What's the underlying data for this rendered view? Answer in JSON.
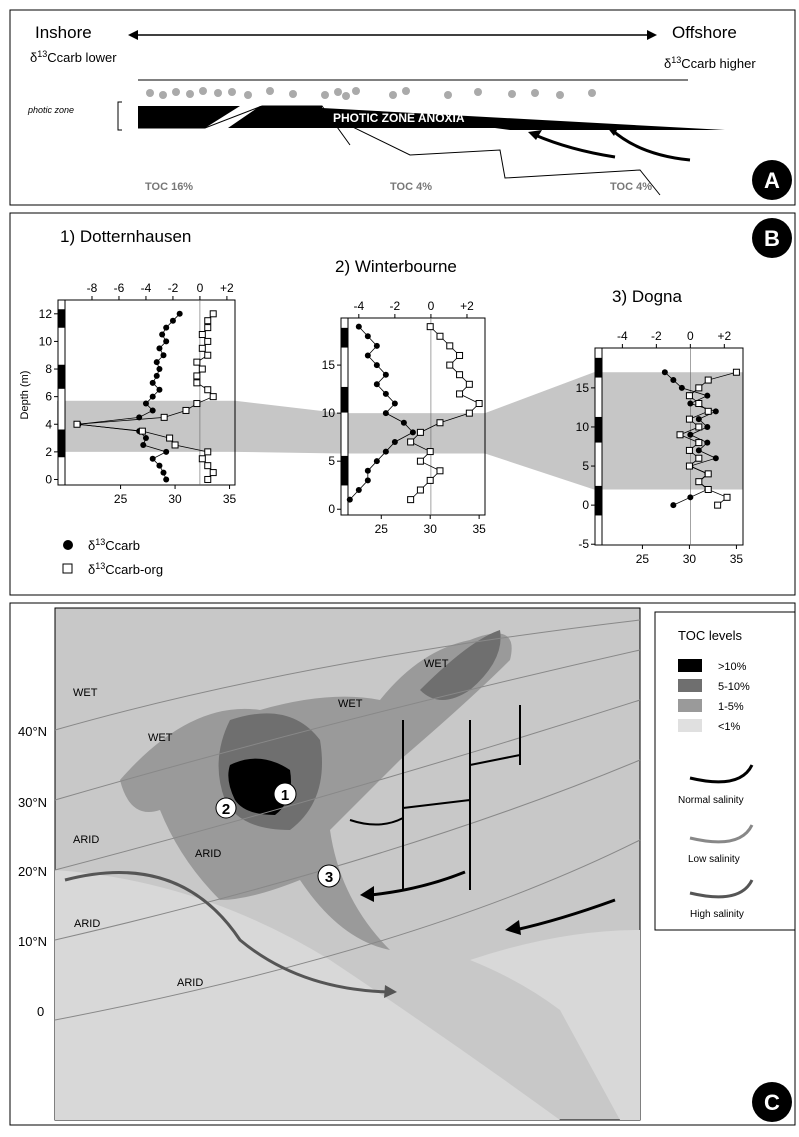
{
  "panel_a": {
    "label": "A",
    "inshore": "Inshore",
    "offshore": "Offshore",
    "inshore_sub": {
      "prefix": "δ",
      "sup": "13",
      "rest": "Ccarb lower"
    },
    "offshore_sub": {
      "prefix": "δ",
      "sup": "13",
      "rest": "Ccarb higher"
    },
    "photic_zone": "photic zone",
    "anoxia": "PHOTIC ZONE ANOXIA",
    "toc": [
      "TOC 16%",
      "TOC 4%",
      "TOC 4%"
    ]
  },
  "panel_b": {
    "label": "B",
    "legend": [
      {
        "prefix": "δ",
        "sup": "13",
        "rest": "Ccarb"
      },
      {
        "prefix": "δ",
        "sup": "13",
        "rest": "Ccarb-org"
      }
    ],
    "depth_label": "Depth (m)",
    "charts": [
      {
        "type": "profile",
        "title": "1) Dotternhausen",
        "xlim": [
          -10,
          2.6
        ],
        "xticks": [
          -8,
          -6,
          -4,
          -2,
          0,
          {
            "value": 2,
            "label": "+2"
          }
        ],
        "x2lim": [
          19.9,
          35.5
        ],
        "x2ticks": [
          25,
          30,
          35
        ],
        "ylim": [
          -0.4,
          13
        ],
        "yticks": [
          0,
          2,
          4,
          6,
          8,
          10,
          12
        ],
        "band": [
          2,
          5.7
        ],
        "depth": [
          12,
          11.5,
          11,
          10.5,
          10,
          9.5,
          9,
          8.5,
          8,
          7.5,
          7,
          6.5,
          6,
          5.5,
          5,
          4.5,
          4,
          3.5,
          3,
          2.5,
          2,
          1.5,
          1,
          0.5,
          0
        ],
        "carb": [
          -1.5,
          -2,
          -2.5,
          -2.8,
          -2.5,
          -3,
          -2.7,
          -3.2,
          -3,
          -3.2,
          -3.5,
          -3,
          -3.5,
          -4,
          -3.5,
          -4.5,
          -9,
          -4.5,
          -4,
          -4.2,
          -2.5,
          -3.5,
          -3,
          -2.7,
          -2.5
        ],
        "carb_org": [
          33.5,
          33,
          33,
          32.5,
          33,
          32.5,
          33,
          32,
          32.5,
          32,
          32,
          33,
          33.5,
          32,
          31,
          29,
          21,
          27,
          29.5,
          30,
          33,
          32.5,
          33,
          33.5,
          33
        ]
      },
      {
        "type": "profile",
        "title": "2) Winterbourne",
        "xlim": [
          -4.6,
          3
        ],
        "xticks": [
          -4,
          -2,
          0,
          {
            "value": 2,
            "label": "+2"
          }
        ],
        "x2lim": [
          21.6,
          35.6
        ],
        "x2ticks": [
          25,
          30,
          35
        ],
        "ylim": [
          -0.6,
          19.9
        ],
        "yticks": [
          0,
          5,
          10,
          15
        ],
        "band": [
          5.8,
          10
        ],
        "depth": [
          1,
          2,
          3,
          4,
          5,
          6,
          7,
          8,
          9,
          10,
          11,
          12,
          13,
          14,
          15,
          16,
          17,
          18,
          19
        ],
        "carb": [
          -4.5,
          -4,
          -3.5,
          -3.5,
          -3,
          -2.5,
          -2,
          -1,
          -1.5,
          -2.5,
          -2,
          -2.5,
          -3,
          -2.5,
          -3,
          -3.5,
          -3,
          -3.5,
          -4
        ],
        "carb_org": [
          28,
          29,
          30,
          31,
          29,
          30,
          28,
          29,
          31,
          34,
          35,
          33,
          34,
          33,
          32,
          33,
          32,
          31,
          30
        ]
      },
      {
        "type": "profile",
        "title": "3) Dogna",
        "xlim": [
          -5.2,
          3.1
        ],
        "xticks": [
          -4,
          -2,
          0,
          {
            "value": 2,
            "label": "+2"
          }
        ],
        "x2lim": [
          20.7,
          35.7
        ],
        "x2ticks": [
          25,
          30,
          35
        ],
        "ylim": [
          -5.1,
          20.1
        ],
        "yticks": [
          -5,
          0,
          5,
          10,
          15
        ],
        "band": [
          2,
          17
        ],
        "depth": [
          0,
          1,
          2,
          3,
          4,
          5,
          6,
          7,
          8,
          9,
          10,
          11,
          12,
          13,
          14,
          15,
          16,
          17
        ],
        "carb": [
          -1,
          0,
          1,
          0.5,
          1,
          0,
          1.5,
          0.5,
          1,
          0,
          1,
          0.5,
          1.5,
          0,
          1,
          -0.5,
          -1,
          -1.5
        ],
        "carb_org": [
          33,
          34,
          32,
          31,
          32,
          30,
          31,
          30,
          31,
          29,
          31,
          30,
          32,
          31,
          30,
          31,
          32,
          35
        ]
      }
    ]
  },
  "panel_c": {
    "label": "C",
    "wet": [
      "WET",
      "WET",
      "WET",
      "WET"
    ],
    "arid": [
      "ARID",
      "ARID",
      "ARID",
      "ARID"
    ],
    "latitudes": [
      "40°N",
      "30°N",
      "20°N",
      "10°N",
      "0"
    ],
    "sites": [
      "1",
      "2",
      "3"
    ],
    "legend": {
      "title": "TOC levels",
      "levels": [
        ">10%",
        "5-10%",
        "1-5%",
        "<1%"
      ],
      "salinity": [
        "Normal salinity",
        "Low salinity",
        "High salinity"
      ]
    }
  }
}
